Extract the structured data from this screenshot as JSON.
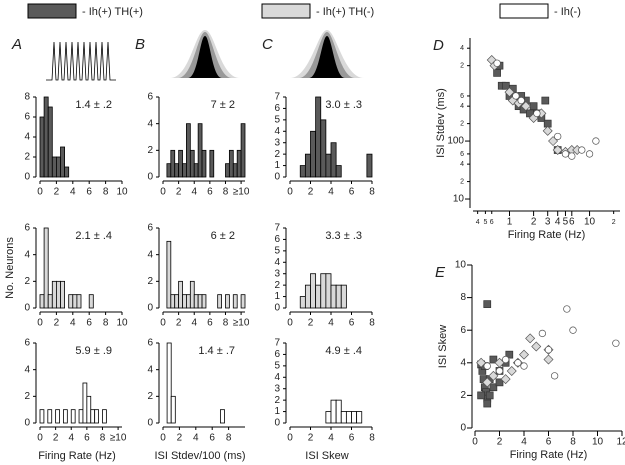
{
  "chart_data": [
    {
      "type": "histogram",
      "panel": "A",
      "annotation": "1.4 ± .2",
      "color": "#5a5a5a",
      "bins": [
        0,
        0.5,
        1,
        1.5,
        2,
        2.5,
        3,
        3.5,
        4,
        4.5,
        5,
        5.5,
        6,
        6.5,
        7,
        7.5,
        8,
        8.5,
        9,
        9.5,
        10
      ],
      "counts": [
        6,
        8,
        7,
        2,
        2,
        3,
        1,
        0,
        0,
        0,
        0,
        0,
        0,
        0,
        0,
        0,
        0,
        0,
        0,
        0
      ],
      "xlim": [
        0,
        10
      ],
      "xticks": [
        0,
        2,
        4,
        6,
        8,
        10
      ],
      "ylim": [
        0,
        8
      ],
      "yticks": [
        0,
        2,
        4,
        6,
        8
      ]
    },
    {
      "type": "histogram",
      "panel": "B",
      "annotation": "7 ± 2",
      "color": "#5a5a5a",
      "bins": [
        0,
        0.5,
        1,
        1.5,
        2,
        2.5,
        3,
        3.5,
        4,
        4.5,
        5,
        5.5,
        6,
        6.5,
        7,
        7.5,
        8,
        8.5,
        9,
        9.5,
        10,
        10.5
      ],
      "counts": [
        0,
        1,
        2,
        1,
        2,
        1,
        4,
        2,
        1,
        4,
        2,
        0,
        2,
        0,
        0,
        0,
        1,
        2,
        1,
        2,
        4
      ],
      "xlim": [
        0,
        10.5
      ],
      "xticks": [
        0,
        2,
        4,
        6,
        8,
        {
          "value": 10,
          "label": "≥10"
        }
      ],
      "ylim": [
        0,
        6
      ],
      "yticks": [
        0,
        2,
        4,
        6
      ]
    },
    {
      "type": "histogram",
      "panel": "C",
      "annotation": "3.0 ± .3",
      "color": "#5a5a5a",
      "bins": [
        0,
        0.5,
        1,
        1.5,
        2,
        2.5,
        3,
        3.5,
        4,
        4.5,
        5,
        5.5,
        6,
        6.5,
        7,
        7.5,
        8
      ],
      "counts": [
        0,
        0,
        1,
        2,
        4,
        7,
        5,
        2,
        3,
        1,
        0,
        0,
        0,
        0,
        0,
        2
      ],
      "xlim": [
        0,
        8
      ],
      "xticks": [
        0,
        2,
        4,
        6,
        8
      ],
      "ylim": [
        0,
        7
      ],
      "yticks": [
        0,
        1,
        2,
        3,
        4,
        5,
        6,
        7
      ]
    },
    {
      "type": "histogram",
      "annotation": "2.1 ± .4",
      "ylabel": "No. Neurons",
      "color": "#d9d9d9",
      "bins": [
        0,
        0.5,
        1,
        1.5,
        2,
        2.5,
        3,
        3.5,
        4,
        4.5,
        5,
        5.5,
        6,
        6.5,
        7,
        7.5,
        8,
        8.5,
        9,
        9.5,
        10
      ],
      "counts": [
        1,
        6,
        1,
        2,
        2,
        2,
        0,
        1,
        1,
        1,
        0,
        0,
        1,
        0,
        0,
        0,
        0,
        0,
        0,
        0
      ],
      "xlim": [
        0,
        10
      ],
      "xticks": [
        0,
        2,
        4,
        6,
        8,
        10
      ],
      "ylim": [
        0,
        6
      ],
      "yticks": [
        0,
        2,
        4,
        6
      ]
    },
    {
      "type": "histogram",
      "annotation": "6 ± 2",
      "color": "#d9d9d9",
      "bins": [
        0,
        0.5,
        1,
        1.5,
        2,
        2.5,
        3,
        3.5,
        4,
        4.5,
        5,
        5.5,
        6,
        6.5,
        7,
        7.5,
        8,
        8.5,
        9,
        9.5,
        10,
        10.5
      ],
      "counts": [
        0,
        5,
        1,
        1,
        2,
        1,
        1,
        2,
        1,
        1,
        1,
        0,
        0,
        0,
        1,
        0,
        1,
        0,
        1,
        0,
        1
      ],
      "xlim": [
        0,
        10.5
      ],
      "xticks": [
        0,
        2,
        4,
        6,
        8,
        {
          "value": 10,
          "label": "≥10"
        }
      ],
      "ylim": [
        0,
        6
      ],
      "yticks": [
        0,
        2,
        4,
        6
      ]
    },
    {
      "type": "histogram",
      "annotation": "3.3 ± .3",
      "color": "#d9d9d9",
      "bins": [
        0,
        0.5,
        1,
        1.5,
        2,
        2.5,
        3,
        3.5,
        4,
        4.5,
        5,
        5.5,
        6,
        6.5,
        7,
        7.5,
        8
      ],
      "counts": [
        0,
        0,
        1,
        2,
        3,
        2,
        3,
        3,
        2,
        2,
        2,
        0,
        0,
        0,
        0,
        0
      ],
      "xlim": [
        0,
        8
      ],
      "xticks": [
        0,
        2,
        4,
        6,
        8
      ],
      "ylim": [
        0,
        7
      ],
      "yticks": [
        0,
        1,
        2,
        3,
        4,
        5,
        6,
        7
      ]
    },
    {
      "type": "histogram",
      "annotation": "5.9 ± .9",
      "xlabel": "Firing Rate (Hz)",
      "color": "#ffffff",
      "bins": [
        0,
        0.5,
        1,
        1.5,
        2,
        2.5,
        3,
        3.5,
        4,
        4.5,
        5,
        5.5,
        6,
        6.5,
        7,
        7.5,
        8,
        8.5,
        9,
        9.5,
        10,
        10.5
      ],
      "counts": [
        1,
        0,
        1,
        0,
        1,
        0,
        1,
        0,
        1,
        0,
        1,
        3,
        2,
        1,
        1,
        0,
        1,
        0,
        0,
        0,
        0
      ],
      "xlim": [
        0,
        10.5
      ],
      "xticks": [
        0,
        2,
        4,
        6,
        8,
        {
          "value": 10,
          "label": "≥10"
        }
      ],
      "ylim": [
        0,
        6
      ],
      "yticks": [
        0,
        2,
        4,
        6
      ]
    },
    {
      "type": "histogram",
      "annotation": "1.4 ± .7",
      "xlabel": "ISI Stdev/100 (ms)",
      "color": "#ffffff",
      "bins": [
        0,
        0.5,
        1,
        1.5,
        2,
        2.5,
        3,
        3.5,
        4,
        4.5,
        5,
        5.5,
        6,
        6.5,
        7,
        7.5,
        8,
        8.5,
        9,
        9.5,
        10
      ],
      "counts": [
        0,
        6,
        2,
        0,
        0,
        0,
        0,
        0,
        0,
        0,
        0,
        0,
        0,
        0,
        1,
        0,
        0,
        0,
        0,
        0
      ],
      "xlim": [
        0,
        10
      ],
      "xticks": [
        0,
        2,
        4,
        6,
        8
      ],
      "ylim": [
        0,
        6
      ],
      "yticks": [
        0,
        2,
        4,
        6
      ]
    },
    {
      "type": "histogram",
      "annotation": "4.9 ± .4",
      "xlabel": "ISI Skew",
      "color": "#ffffff",
      "bins": [
        0,
        0.5,
        1,
        1.5,
        2,
        2.5,
        3,
        3.5,
        4,
        4.5,
        5,
        5.5,
        6,
        6.5,
        7,
        7.5,
        8
      ],
      "counts": [
        0,
        0,
        0,
        0,
        0,
        0,
        0,
        1,
        2,
        2,
        1,
        1,
        1,
        1,
        0,
        0
      ],
      "xlim": [
        0,
        8
      ],
      "xticks": [
        0,
        2,
        4,
        6,
        8
      ],
      "ylim": [
        0,
        7
      ],
      "yticks": [
        0,
        1,
        2,
        3,
        4,
        5,
        6,
        7
      ]
    },
    {
      "type": "scatter",
      "panel": "D",
      "xlabel": "Firing Rate (Hz)",
      "ylabel": "ISI Stdev (ms)",
      "xscale": "log",
      "yscale": "log",
      "xlim": [
        0.35,
        24
      ],
      "ylim": [
        7,
        6000
      ],
      "xticks": [
        {
          "value": 0.4,
          "label": "4"
        },
        {
          "value": 0.5,
          "label": "5"
        },
        {
          "value": 0.6,
          "label": "6"
        },
        1,
        2,
        3,
        4,
        5,
        6,
        10,
        {
          "value": 20,
          "label": "2"
        }
      ],
      "yticks": [
        10,
        {
          "value": 20,
          "label": "2"
        },
        {
          "value": 40,
          "label": "4"
        },
        {
          "value": 60,
          "label": "6"
        },
        100,
        {
          "value": 200,
          "label": "2"
        },
        {
          "value": 400,
          "label": "4"
        },
        {
          "value": 600,
          "label": "6"
        },
        {
          "value": 2000,
          "label": "2"
        },
        {
          "value": 4000,
          "label": "4"
        }
      ],
      "series": [
        {
          "name": "- Ih(+) TH(+)",
          "color": "#5a5a5a",
          "marker": "square",
          "x": [
            0.7,
            0.8,
            0.9,
            1.0,
            1.1,
            1.2,
            1.3,
            1.5,
            1.6,
            1.8,
            2.0,
            2.2,
            2.5,
            3,
            2.8,
            1.4,
            0.75,
            4
          ],
          "y": [
            1500,
            900,
            900,
            600,
            800,
            500,
            400,
            350,
            500,
            300,
            400,
            300,
            250,
            200,
            500,
            600,
            2000,
            70
          ]
        },
        {
          "name": "- Ih(+) TH(-)",
          "color": "#d9d9d9",
          "marker": "diamond",
          "x": [
            0.6,
            0.65,
            1.0,
            1.1,
            1.3,
            1.6,
            2.0,
            2.5,
            3,
            3.5,
            4,
            5,
            6,
            7
          ],
          "y": [
            2500,
            2000,
            700,
            500,
            450,
            400,
            250,
            300,
            150,
            100,
            70,
            65,
            70,
            70
          ]
        },
        {
          "name": "- Ih(-)",
          "color": "#ffffff",
          "marker": "circle",
          "x": [
            0.7,
            1.2,
            1.4,
            2.2,
            4,
            5,
            6,
            8,
            10,
            12
          ],
          "y": [
            2200,
            600,
            500,
            300,
            120,
            60,
            55,
            70,
            60,
            100
          ]
        }
      ]
    },
    {
      "type": "scatter",
      "panel": "E",
      "xlabel": "Firing Rate (Hz)",
      "ylabel": "ISI Skew",
      "xlim": [
        0,
        12
      ],
      "ylim": [
        0,
        10
      ],
      "xticks": [
        0,
        2,
        4,
        6,
        8,
        10,
        12
      ],
      "yticks": [
        0,
        2,
        4,
        6,
        8,
        10
      ],
      "series": [
        {
          "color": "#5a5a5a",
          "marker": "square",
          "x": [
            1,
            0.5,
            0.6,
            0.7,
            0.8,
            0.9,
            1,
            1.2,
            1.5,
            1,
            0.8,
            2,
            2.5,
            2.8,
            1.5,
            0.5,
            1.2,
            2
          ],
          "y": [
            7.6,
            3.9,
            3.5,
            3,
            2.5,
            2.2,
            1.8,
            2,
            2.5,
            1.5,
            3.8,
            3.5,
            4,
            4.5,
            4.2,
            2,
            3,
            2.8
          ]
        },
        {
          "color": "#d9d9d9",
          "marker": "diamond",
          "x": [
            0.5,
            1.5,
            2,
            3,
            3.5,
            4,
            4.5,
            5,
            6,
            6,
            1,
            2.5
          ],
          "y": [
            4,
            3.2,
            4,
            3.5,
            4,
            4.5,
            5.5,
            5,
            4.8,
            4.2,
            2.8,
            3
          ]
        },
        {
          "color": "#ffffff",
          "marker": "circle",
          "x": [
            1,
            2,
            2.5,
            3.5,
            5.5,
            6,
            6.5,
            7.5,
            8,
            11.5,
            4
          ],
          "y": [
            3.8,
            3.5,
            4.2,
            4,
            5.8,
            4.8,
            3.2,
            7.3,
            6,
            5.2,
            3.8
          ]
        }
      ]
    }
  ]
}
